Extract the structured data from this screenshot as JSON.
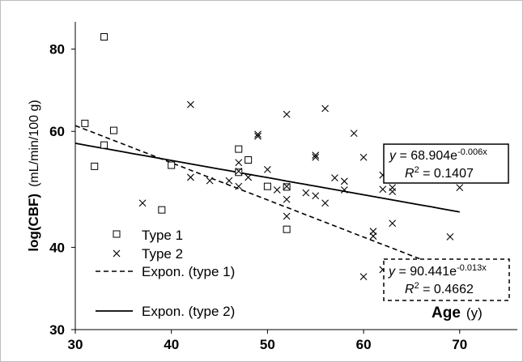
{
  "chart_data": {
    "type": "scatter",
    "xlabel": "Age",
    "xlabel_unit": "(y)",
    "ylabel": "log(CBF)",
    "ylabel_unit": "(mL/min/100 g)",
    "xlim": [
      30,
      76
    ],
    "ylim": [
      30,
      88
    ],
    "x_ticks": [
      "30",
      "40",
      "50",
      "60",
      "70"
    ],
    "y_ticks": [
      "30",
      "40",
      "60",
      "80"
    ],
    "y_scale": "log",
    "grid": false,
    "legend_position": "bottom-left",
    "series": [
      {
        "name": "Type 1",
        "marker": "square",
        "points": [
          [
            31,
            61.7
          ],
          [
            32,
            53.1
          ],
          [
            33,
            57.2
          ],
          [
            33,
            83.5
          ],
          [
            34,
            60.2
          ],
          [
            39,
            45.6
          ],
          [
            40,
            53.3
          ],
          [
            47,
            56.4
          ],
          [
            47,
            52.0
          ],
          [
            48,
            54.3
          ],
          [
            50,
            49.5
          ],
          [
            52,
            49.4
          ],
          [
            52,
            42.6
          ]
        ]
      },
      {
        "name": "Type 2",
        "marker": "x",
        "points": [
          [
            37,
            46.7
          ],
          [
            42,
            65.9
          ],
          [
            42,
            51.1
          ],
          [
            44,
            50.5
          ],
          [
            46,
            50.5
          ],
          [
            47,
            53.8
          ],
          [
            47,
            52.2
          ],
          [
            47,
            49.5
          ],
          [
            48,
            51.1
          ],
          [
            49,
            59.4
          ],
          [
            49,
            59.0
          ],
          [
            50,
            52.5
          ],
          [
            51,
            48.9
          ],
          [
            52,
            63.7
          ],
          [
            52,
            49.5
          ],
          [
            52,
            47.3
          ],
          [
            52,
            44.6
          ],
          [
            54,
            48.4
          ],
          [
            55,
            55.2
          ],
          [
            55,
            54.8
          ],
          [
            55,
            47.9
          ],
          [
            56,
            65.0
          ],
          [
            56,
            46.7
          ],
          [
            57,
            51.0
          ],
          [
            58,
            50.4
          ],
          [
            58,
            48.9
          ],
          [
            59,
            59.6
          ],
          [
            60,
            54.8
          ],
          [
            60,
            36.1
          ],
          [
            61,
            42.3
          ],
          [
            61,
            41.6
          ],
          [
            62,
            51.5
          ],
          [
            62,
            49.0
          ],
          [
            62,
            37.0
          ],
          [
            63,
            49.3
          ],
          [
            63,
            48.6
          ],
          [
            63,
            43.5
          ],
          [
            69,
            41.5
          ],
          [
            70,
            49.3
          ]
        ]
      },
      {
        "name": "Expon. (type 1)",
        "line": "dashed",
        "equation": "y = 90.441e-0.013x",
        "r2": "R² = 0.4662",
        "a": 90.441,
        "b": -0.013,
        "x_range": [
          30,
          66
        ]
      },
      {
        "name": "Expon. (type 2)",
        "line": "solid",
        "equation": "y = 68.904e-0.006x",
        "r2": "R² = 0.1407",
        "a": 68.904,
        "b": -0.006,
        "x_range": [
          30,
          70
        ]
      }
    ]
  },
  "legend": {
    "items": [
      {
        "label": "Type 1",
        "icon": "square-marker-icon"
      },
      {
        "label": "Type 2",
        "icon": "x-marker-icon"
      },
      {
        "label": "Expon. (type 1)",
        "icon": "dashed-line-icon"
      },
      {
        "label": "Expon. (type 2)",
        "icon": "solid-line-icon"
      }
    ]
  },
  "equations": {
    "type2": {
      "y": "y",
      "eq": " = 68.904e",
      "exp": "-0.006x",
      "r2_prefix": "R",
      "r2_sup": "2",
      "r2_value": " = 0.1407"
    },
    "type1": {
      "y": "y",
      "eq": " = 90.441e",
      "exp": "-0.013x",
      "r2_prefix": "R",
      "r2_sup": "2",
      "r2_value": " = 0.4662"
    }
  }
}
